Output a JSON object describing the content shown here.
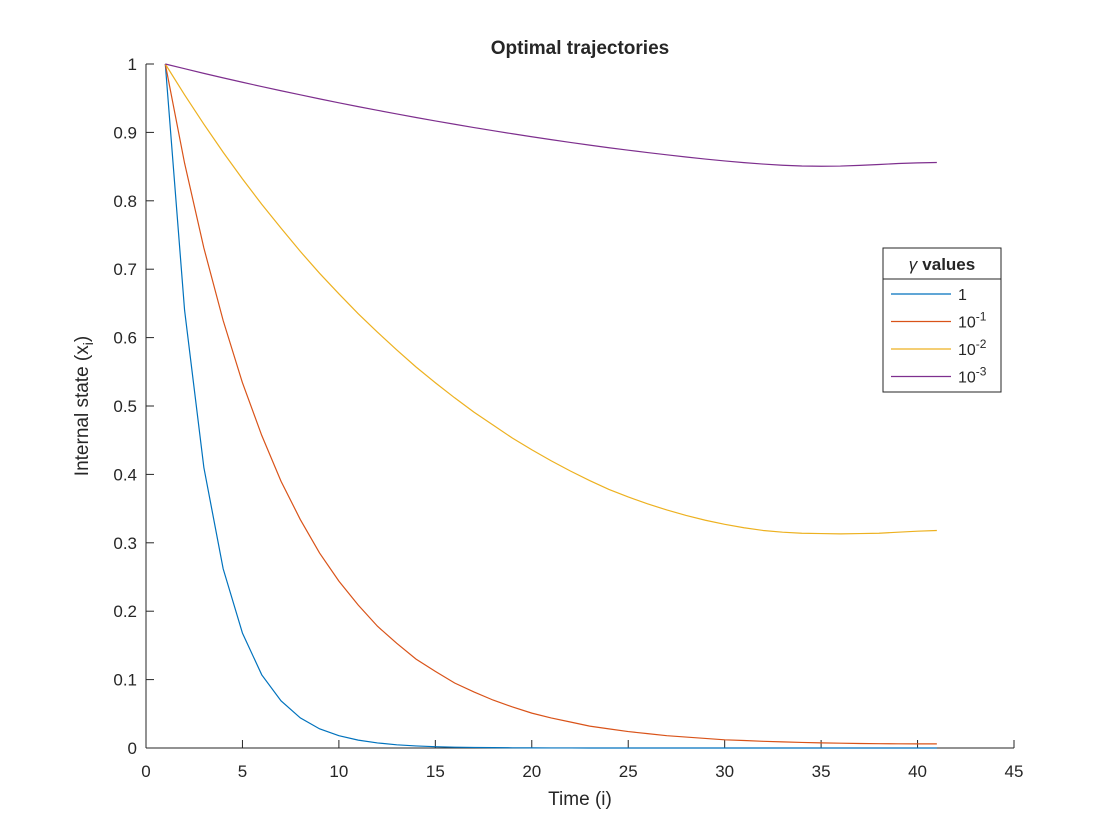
{
  "chart_data": {
    "type": "line",
    "title": "Optimal trajectories",
    "xlabel": "Time (i)",
    "ylabel_main": "Internal state (x",
    "ylabel_sub": "i",
    "ylabel_close": ")",
    "xlim": [
      0,
      45
    ],
    "ylim": [
      0,
      1
    ],
    "xticks": [
      0,
      5,
      10,
      15,
      20,
      25,
      30,
      35,
      40,
      45
    ],
    "yticks": [
      0,
      0.1,
      0.2,
      0.3,
      0.4,
      0.5,
      0.6,
      0.7,
      0.8,
      0.9,
      1
    ],
    "grid": false,
    "legend": {
      "title_symbol": "γ",
      "title_text": "values",
      "placement": "right",
      "entries": [
        {
          "base": "1",
          "exp": ""
        },
        {
          "base": "10",
          "exp": "-1"
        },
        {
          "base": "10",
          "exp": "-2"
        },
        {
          "base": "10",
          "exp": "-3"
        }
      ]
    },
    "x": [
      1,
      2,
      3,
      4,
      5,
      6,
      7,
      8,
      9,
      10,
      11,
      12,
      13,
      14,
      15,
      16,
      17,
      18,
      19,
      20,
      21,
      22,
      23,
      24,
      25,
      26,
      27,
      28,
      29,
      30,
      31,
      32,
      33,
      34,
      35,
      36,
      37,
      38,
      39,
      40,
      41
    ],
    "series": [
      {
        "name": "1",
        "color": "#0072BD",
        "values": [
          1,
          0.64,
          0.41,
          0.262,
          0.168,
          0.107,
          0.069,
          0.044,
          0.028,
          0.018,
          0.0115,
          0.0074,
          0.0047,
          0.003,
          0.0019,
          0.0012,
          0.0008,
          0.0005,
          0.0003,
          0.0002,
          0.0001,
          0.0001,
          0,
          0,
          0,
          0,
          0,
          0,
          0,
          0,
          0,
          0,
          0,
          0,
          0,
          0,
          0,
          0,
          0,
          0,
          0
        ]
      },
      {
        "name": "10^-1",
        "color": "#D95319",
        "values": [
          1,
          0.855,
          0.731,
          0.625,
          0.534,
          0.457,
          0.39,
          0.334,
          0.285,
          0.244,
          0.209,
          0.178,
          0.153,
          0.13,
          0.112,
          0.095,
          0.082,
          0.07,
          0.06,
          0.051,
          0.044,
          0.038,
          0.032,
          0.028,
          0.024,
          0.021,
          0.018,
          0.016,
          0.014,
          0.012,
          0.011,
          0.0098,
          0.0089,
          0.0081,
          0.0075,
          0.007,
          0.0066,
          0.0063,
          0.0061,
          0.006,
          0.006
        ]
      },
      {
        "name": "10^-2",
        "color": "#EDB120",
        "values": [
          1,
          0.955,
          0.912,
          0.871,
          0.832,
          0.795,
          0.76,
          0.726,
          0.694,
          0.664,
          0.635,
          0.608,
          0.582,
          0.557,
          0.534,
          0.512,
          0.491,
          0.472,
          0.453,
          0.436,
          0.42,
          0.405,
          0.391,
          0.378,
          0.367,
          0.357,
          0.348,
          0.34,
          0.333,
          0.327,
          0.322,
          0.318,
          0.3155,
          0.314,
          0.3135,
          0.313,
          0.3135,
          0.314,
          0.3155,
          0.317,
          0.318
        ]
      },
      {
        "name": "10^-3",
        "color": "#7E2F8E",
        "values": [
          1,
          0.9931,
          0.9863,
          0.9797,
          0.9733,
          0.967,
          0.9609,
          0.9549,
          0.949,
          0.9433,
          0.9377,
          0.9323,
          0.927,
          0.9218,
          0.9168,
          0.9119,
          0.9071,
          0.9025,
          0.898,
          0.8936,
          0.8894,
          0.8853,
          0.8814,
          0.8776,
          0.874,
          0.8705,
          0.8672,
          0.864,
          0.861,
          0.8583,
          0.8558,
          0.8537,
          0.852,
          0.8509,
          0.8505,
          0.8508,
          0.8518,
          0.8531,
          0.8545,
          0.8555,
          0.856
        ]
      }
    ]
  }
}
